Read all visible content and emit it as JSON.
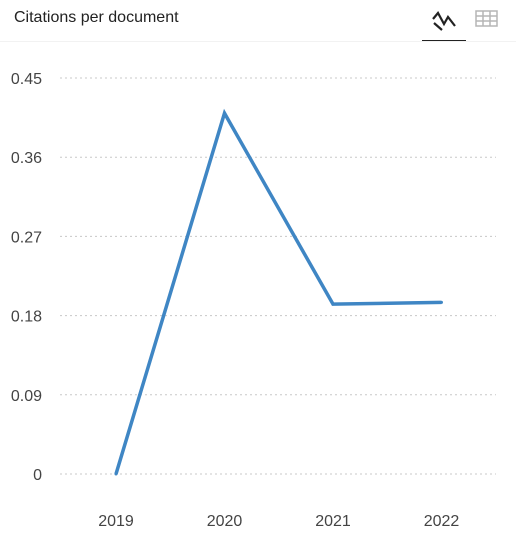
{
  "header": {
    "title": "Citations per document",
    "icons": {
      "chart_view": "line-chart-icon",
      "table_view": "table-grid-icon"
    },
    "selected_view": "chart"
  },
  "chart_data": {
    "type": "line",
    "title": "Citations per document",
    "xlabel": "",
    "ylabel": "",
    "categories": [
      "2019",
      "2020",
      "2021",
      "2022"
    ],
    "series": [
      {
        "values": [
          0,
          0.41,
          0.193,
          0.195
        ],
        "color": "#3f86c4"
      }
    ],
    "ylim": [
      0,
      0.45
    ],
    "yticks": [
      "0",
      "0.09",
      "0.18",
      "0.27",
      "0.36",
      "0.45"
    ],
    "grid": true
  }
}
